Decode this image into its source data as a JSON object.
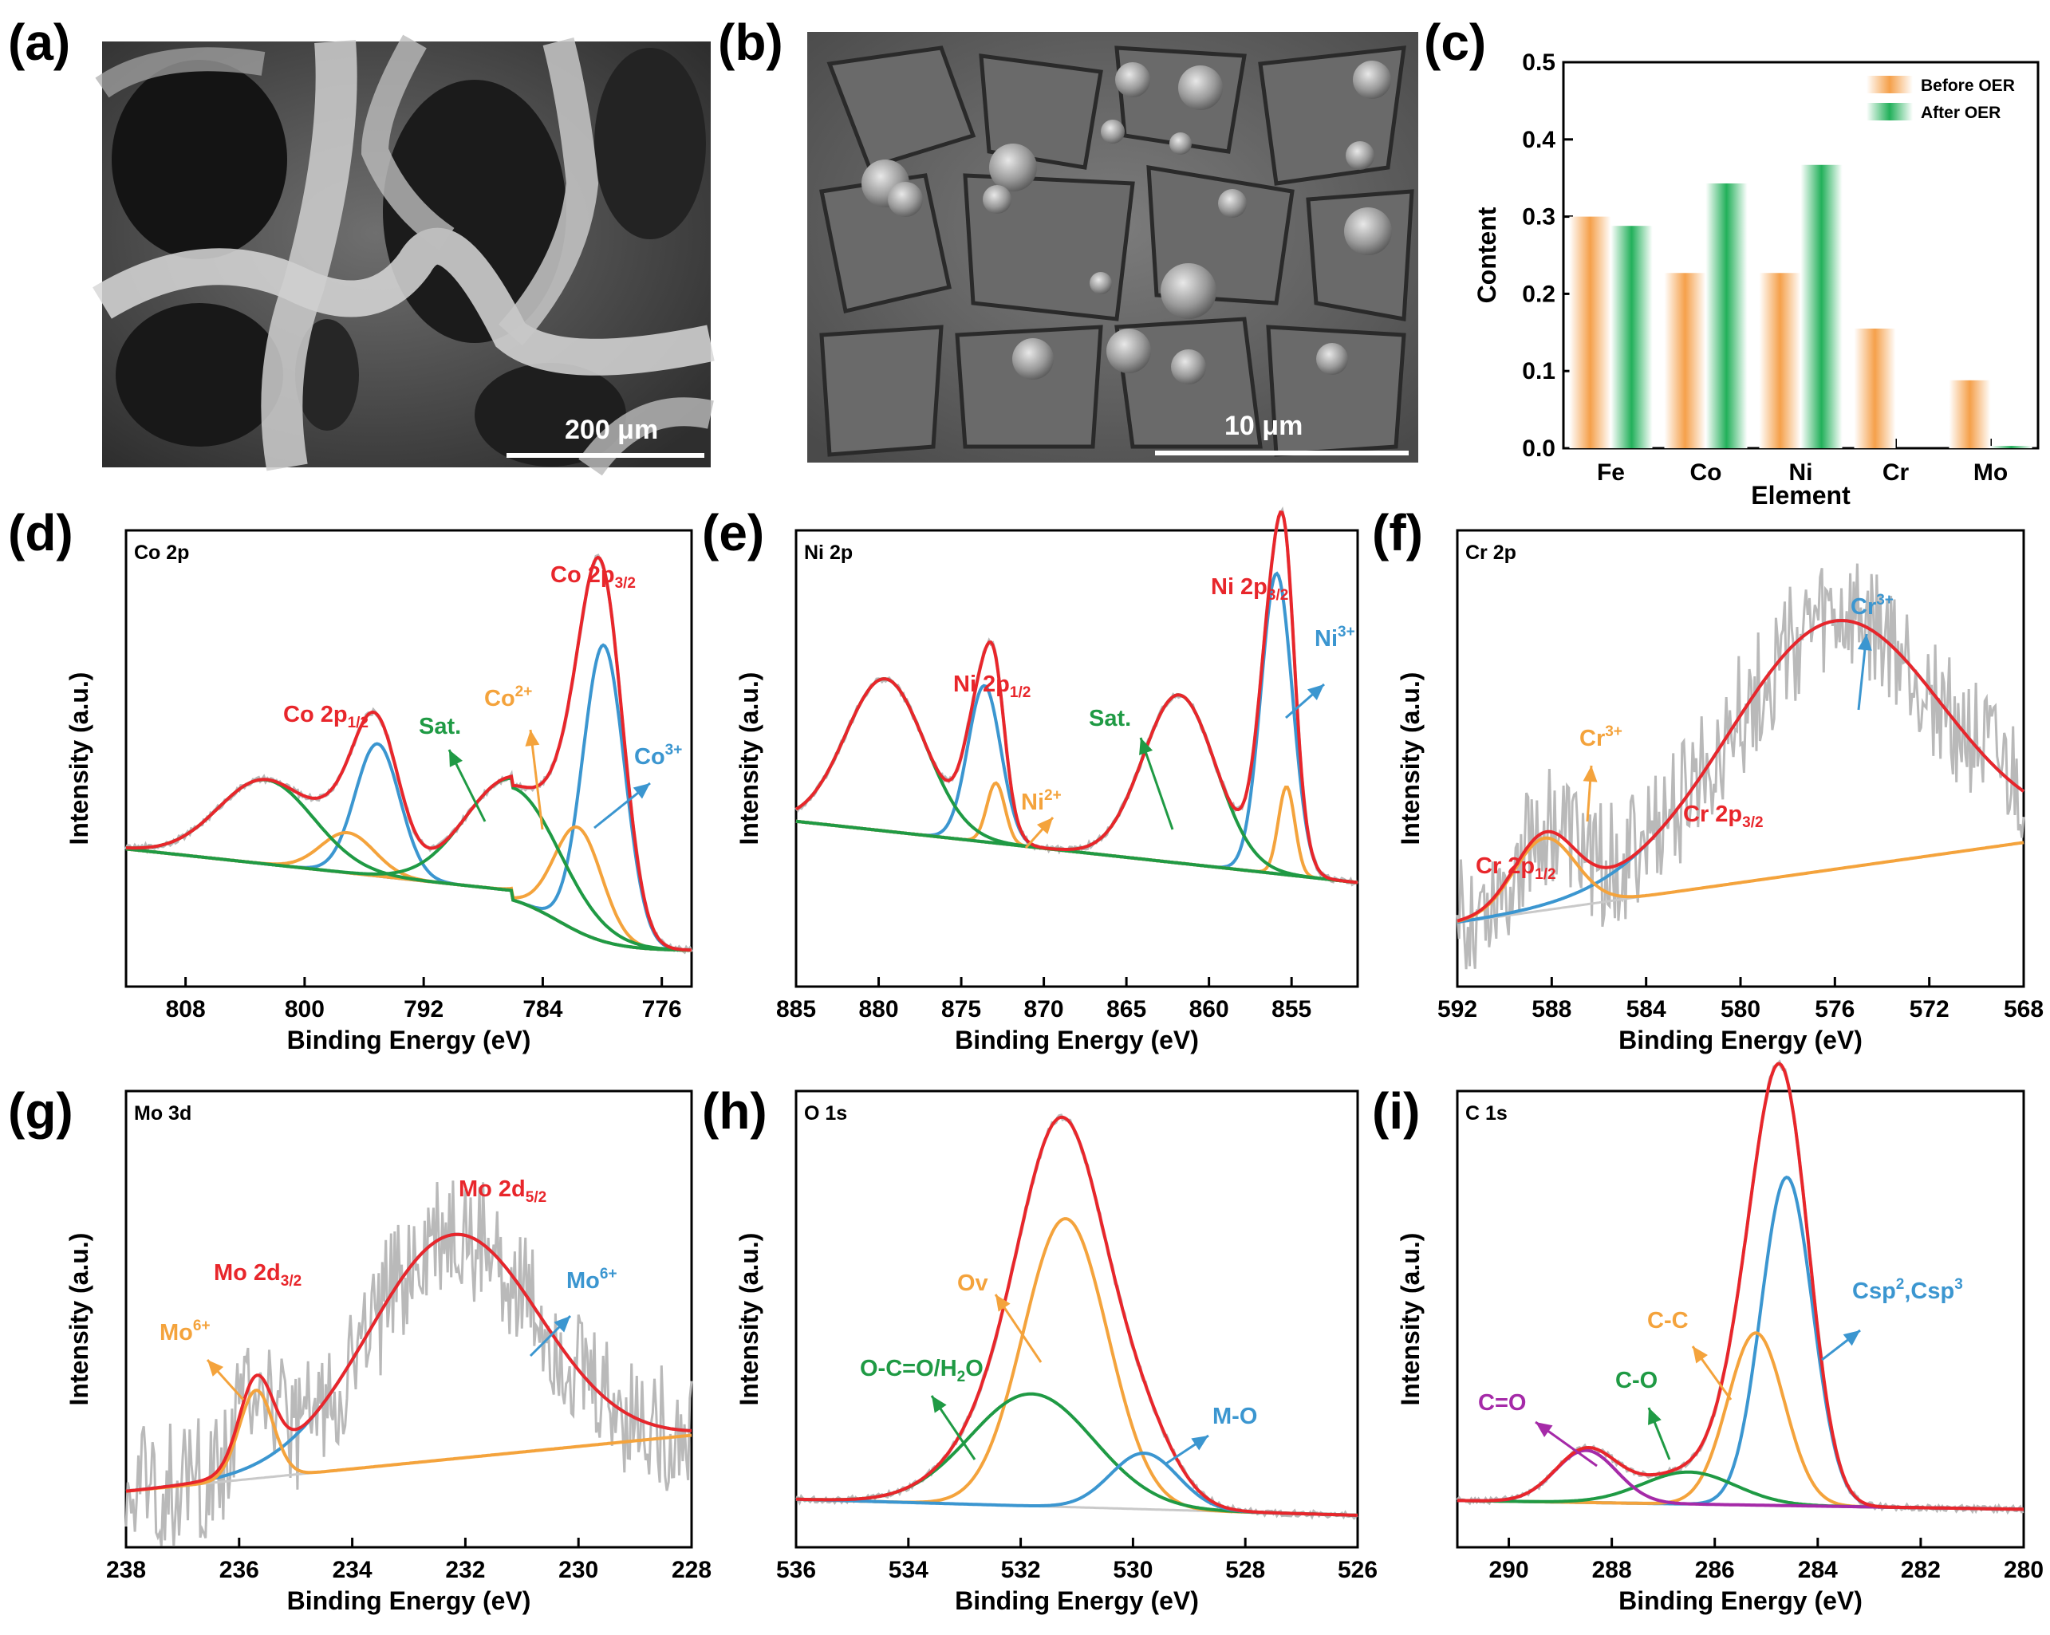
{
  "colors": {
    "total": "#e8262b",
    "blue": "#3b96d0",
    "orange": "#f4a33c",
    "green": "#1f9a44",
    "magenta": "#a52aa8",
    "raw": "#b9b9b9",
    "baseline": "#c9c9c9"
  },
  "panels": {
    "a": {
      "label": "(a)",
      "scale_bar": "200 μm"
    },
    "b": {
      "label": "(b)",
      "scale_bar": "10 μm"
    }
  },
  "chart_data": [
    {
      "id": "c",
      "label": "(c)",
      "type": "bar",
      "categories": [
        "Fe",
        "Co",
        "Ni",
        "Cr",
        "Mo"
      ],
      "series": [
        {
          "name": "Before OER",
          "values": [
            0.3,
            0.227,
            0.227,
            0.155,
            0.088
          ]
        },
        {
          "name": "After OER",
          "values": [
            0.288,
            0.343,
            0.367,
            0.0,
            0.003
          ]
        }
      ],
      "xlabel": "Element",
      "ylabel": "Content",
      "ylim": [
        0,
        0.5
      ],
      "yticks": [
        "0.0",
        "0.1",
        "0.2",
        "0.3",
        "0.4",
        "0.5"
      ],
      "legend": "top-right"
    },
    {
      "id": "d",
      "label": "(d)",
      "type": "line",
      "tag": "Co 2p",
      "xlim": [
        812,
        774
      ],
      "xticks": [
        "808",
        "800",
        "792",
        "784",
        "776"
      ],
      "xlabel": "Binding Energy (eV)",
      "ylabel": "Intensity (a.u.)",
      "series": [
        {
          "name": "Co3+ 2p3/2 fit",
          "color": "blue",
          "center": 779.9,
          "height": 0.74,
          "width": 1.4
        },
        {
          "name": "Co3+ 2p1/2 fit",
          "color": "blue",
          "center": 795.1,
          "height": 0.33,
          "width": 1.5
        },
        {
          "name": "Co2+ 2p3/2 fit",
          "color": "orange",
          "center": 781.6,
          "height": 0.26,
          "width": 1.6
        },
        {
          "name": "Co2+ 2p1/2 fit",
          "color": "orange",
          "center": 797.1,
          "height": 0.1,
          "width": 1.8
        },
        {
          "name": "Sat. 2p3/2",
          "color": "green",
          "center": 786.0,
          "height": 0.28,
          "width": 3.2
        },
        {
          "name": "Sat. 2p1/2",
          "color": "green",
          "center": 802.6,
          "height": 0.21,
          "width": 3.2
        }
      ],
      "annotations": [
        {
          "text": "Co 2p",
          "sub": "3/2",
          "color": "total"
        },
        {
          "text": "Co 2p",
          "sub": "1/2",
          "color": "total"
        },
        {
          "text": "Sat.",
          "color": "green"
        },
        {
          "text": "Co",
          "sup": "2+",
          "color": "orange"
        },
        {
          "text": "Co",
          "sup": "3+",
          "color": "blue"
        }
      ]
    },
    {
      "id": "e",
      "label": "(e)",
      "type": "line",
      "tag": "Ni 2p",
      "xlim": [
        885,
        851
      ],
      "xticks": [
        "885",
        "880",
        "875",
        "870",
        "865",
        "860",
        "855"
      ],
      "xlabel": "Binding Energy (eV)",
      "ylabel": "Intensity (a.u.)",
      "series": [
        {
          "name": "Ni3+ 2p3/2 fit",
          "color": "blue",
          "center": 855.9,
          "height": 0.75,
          "width": 0.95
        },
        {
          "name": "Ni3+ 2p1/2 fit",
          "color": "blue",
          "center": 873.6,
          "height": 0.39,
          "width": 1.0
        },
        {
          "name": "Ni2+ 2p3/2 fit",
          "color": "orange",
          "center": 855.3,
          "height": 0.22,
          "width": 0.5
        },
        {
          "name": "Ni2+ 2p1/2 fit",
          "color": "orange",
          "center": 872.9,
          "height": 0.15,
          "width": 0.55
        },
        {
          "name": "Sat. 2p3/2",
          "color": "green",
          "center": 861.8,
          "height": 0.42,
          "width": 2.2
        },
        {
          "name": "Sat. 2p1/2",
          "color": "green",
          "center": 879.6,
          "height": 0.38,
          "width": 2.4
        }
      ],
      "annotations": [
        {
          "text": "Ni 2p",
          "sub": "3/2",
          "color": "total"
        },
        {
          "text": "Ni 2p",
          "sub": "1/2",
          "color": "total"
        },
        {
          "text": "Sat.",
          "color": "green"
        },
        {
          "text": "Ni",
          "sup": "2+",
          "color": "orange"
        },
        {
          "text": "Ni",
          "sup": "3+",
          "color": "blue"
        }
      ]
    },
    {
      "id": "f",
      "label": "(f)",
      "type": "line",
      "tag": "Cr 2p",
      "xlim": [
        592,
        568
      ],
      "xticks": [
        "592",
        "588",
        "584",
        "580",
        "576",
        "572",
        "568"
      ],
      "xlabel": "Binding Energy (eV)",
      "ylabel": "Intensity (a.u.)",
      "series": [
        {
          "name": "Cr3+ 2p3/2 fit",
          "color": "blue",
          "center": 576.0,
          "height": 0.62,
          "width": 4.5
        },
        {
          "name": "Cr3+ 2p1/2 fit",
          "color": "orange",
          "center": 588.3,
          "height": 0.18,
          "width": 1.3
        }
      ],
      "annotations": [
        {
          "text": "Cr 2p",
          "sub": "3/2",
          "color": "total"
        },
        {
          "text": "Cr 2p",
          "sub": "1/2",
          "color": "total"
        },
        {
          "text": "Cr",
          "sup": "3+",
          "color": "orange"
        },
        {
          "text": "Cr",
          "sup": "3+",
          "color": "blue"
        }
      ]
    },
    {
      "id": "g",
      "label": "(g)",
      "type": "line",
      "tag": "Mo 3d",
      "xlim": [
        238,
        228
      ],
      "xticks": [
        "238",
        "236",
        "234",
        "232",
        "230",
        "228"
      ],
      "xlabel": "Binding Energy (eV)",
      "ylabel": "Intensity (a.u.)",
      "series": [
        {
          "name": "Mo6+ 3d5/2 fit",
          "color": "blue",
          "center": 232.2,
          "height": 0.56,
          "width": 1.5
        },
        {
          "name": "Mo6+ 3d3/2 fit",
          "color": "orange",
          "center": 235.7,
          "height": 0.22,
          "width": 0.3
        }
      ],
      "annotations": [
        {
          "text": "Mo 2d",
          "sub": "5/2",
          "color": "total"
        },
        {
          "text": "Mo 2d",
          "sub": "3/2",
          "color": "total"
        },
        {
          "text": "Mo",
          "sup": "6+",
          "color": "orange"
        },
        {
          "text": "Mo",
          "sup": "6+",
          "color": "blue"
        }
      ]
    },
    {
      "id": "h",
      "label": "(h)",
      "type": "line",
      "tag": "O 1s",
      "xlim": [
        536,
        526
      ],
      "xticks": [
        "536",
        "534",
        "532",
        "530",
        "528",
        "526"
      ],
      "xlabel": "Binding Energy (eV)",
      "ylabel": "Intensity (a.u.)",
      "series": [
        {
          "name": "Ov",
          "color": "orange",
          "center": 531.2,
          "height": 0.72,
          "width": 0.75
        },
        {
          "name": "O-C=O/H2O",
          "color": "green",
          "center": 531.8,
          "height": 0.28,
          "width": 1.1
        },
        {
          "name": "M-O",
          "color": "blue",
          "center": 529.8,
          "height": 0.14,
          "width": 0.6
        }
      ],
      "annotations": [
        {
          "text": "Ov",
          "color": "orange"
        },
        {
          "text": "O-C=O/H",
          "sub": "2",
          "tail": "O",
          "color": "green"
        },
        {
          "text": "M-O",
          "color": "blue"
        }
      ]
    },
    {
      "id": "i",
      "label": "(i)",
      "type": "line",
      "tag": "C 1s",
      "xlim": [
        291,
        280
      ],
      "xticks": [
        "290",
        "288",
        "286",
        "284",
        "282",
        "280"
      ],
      "xlabel": "Binding Energy (eV)",
      "ylabel": "Intensity (a.u.)",
      "series": [
        {
          "name": "Csp2,Csp3",
          "color": "blue",
          "center": 284.6,
          "height": 0.82,
          "width": 0.5
        },
        {
          "name": "C-C",
          "color": "orange",
          "center": 285.2,
          "height": 0.43,
          "width": 0.55
        },
        {
          "name": "C-O",
          "color": "green",
          "center": 286.5,
          "height": 0.08,
          "width": 0.9
        },
        {
          "name": "C=O",
          "color": "magenta",
          "center": 288.5,
          "height": 0.13,
          "width": 0.6
        }
      ],
      "annotations": [
        {
          "text": "Csp",
          "sup": "2",
          "mid": ",Csp",
          "sup2": "3",
          "color": "blue"
        },
        {
          "text": "C-C",
          "color": "orange"
        },
        {
          "text": "C-O",
          "color": "green"
        },
        {
          "text": "C=O",
          "color": "magenta"
        }
      ]
    }
  ]
}
